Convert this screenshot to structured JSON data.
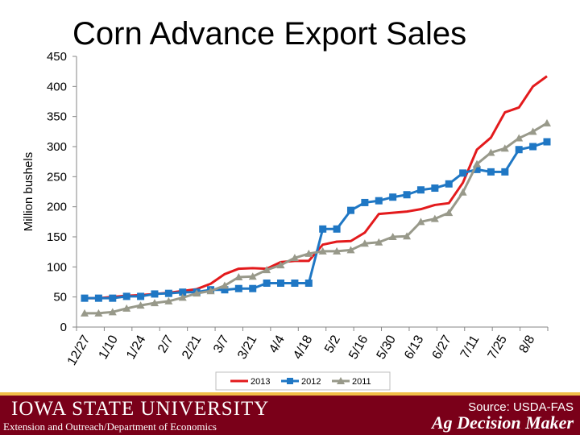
{
  "chart_data": {
    "type": "line",
    "title": "Corn Advance Export Sales",
    "ylabel": "Million bushels",
    "xlabel": "",
    "ylim": [
      0,
      450
    ],
    "yticks": [
      0,
      50,
      100,
      150,
      200,
      250,
      300,
      350,
      400,
      450
    ],
    "tick_labels": [
      "12/27",
      "1/10",
      "1/24",
      "2/7",
      "2/21",
      "3/7",
      "3/21",
      "4/4",
      "4/18",
      "5/2",
      "5/16",
      "5/30",
      "6/13",
      "6/27",
      "7/11",
      "7/25",
      "8/8"
    ],
    "legend_position": "bottom",
    "grid": false,
    "series": [
      {
        "name": "2013",
        "color": "#e31a1c",
        "marker": "none",
        "values": [
          48,
          48,
          50,
          52,
          53,
          55,
          57,
          60,
          63,
          72,
          88,
          97,
          98,
          97,
          108,
          110,
          110,
          137,
          142,
          143,
          157,
          188,
          190,
          192,
          196,
          203,
          206,
          240,
          295,
          315,
          357,
          365,
          400,
          417
        ]
      },
      {
        "name": "2012",
        "color": "#1f77c4",
        "marker": "square",
        "values": [
          48,
          48,
          48,
          51,
          51,
          55,
          56,
          58,
          58,
          62,
          62,
          64,
          64,
          73,
          73,
          73,
          73,
          163,
          163,
          194,
          207,
          210,
          216,
          220,
          228,
          231,
          238,
          256,
          262,
          258,
          258,
          295,
          300,
          308
        ]
      },
      {
        "name": "2011",
        "color": "#98998a",
        "marker": "triangle",
        "values": [
          23,
          23,
          25,
          31,
          36,
          40,
          43,
          49,
          56,
          60,
          69,
          83,
          84,
          95,
          103,
          115,
          122,
          126,
          126,
          128,
          139,
          141,
          150,
          151,
          175,
          180,
          190,
          224,
          271,
          290,
          297,
          314,
          325,
          339
        ]
      }
    ]
  },
  "footer": {
    "university": "IOWA STATE UNIVERSITY",
    "department": "Extension and Outreach/Department of Economics",
    "source": "Source: USDA-FAS",
    "brand": "Ag Decision Maker",
    "background_color": "#7a0019",
    "accent_color": "#f1be48"
  }
}
